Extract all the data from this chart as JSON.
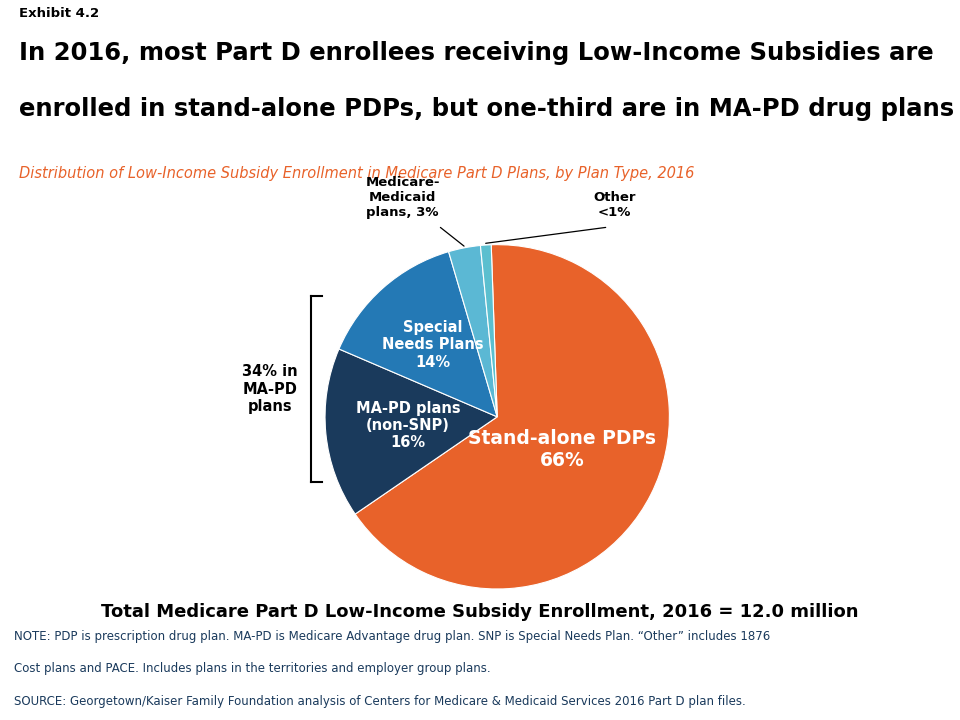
{
  "exhibit_label": "Exhibit 4.2",
  "title_line1": "In 2016, most Part D enrollees receiving Low-Income Subsidies are",
  "title_line2": "enrolled in stand-alone PDPs, but one-third are in MA-PD drug plans",
  "subtitle": "Distribution of Low-Income Subsidy Enrollment in Medicare Part D Plans, by Plan Type, 2016",
  "slices": [
    66,
    16,
    14,
    3,
    1
  ],
  "slice_labels_inside": [
    "Stand-alone PDPs\n66%",
    "MA-PD plans\n(non-SNP)\n16%",
    "Special\nNeeds Plans\n14%",
    "",
    ""
  ],
  "slice_colors": [
    "#E8622A",
    "#1A3A5C",
    "#2479B5",
    "#5BB8D4",
    "#5BBFCF"
  ],
  "bracket_label": "34% in\nMA-PD\nplans",
  "total_label": "Total Medicare Part D Low-Income Subsidy Enrollment, 2016 = 12.0 million",
  "note_line1": "NOTE: PDP is prescription drug plan. MA-PD is Medicare Advantage drug plan. SNP is Special Needs Plan. “Other” includes 1876",
  "note_line2": "Cost plans and PACE. Includes plans in the territories and employer group plans.",
  "source_line": "SOURCE: Georgetown/Kaiser Family Foundation analysis of Centers for Medicare & Medicaid Services 2016 Part D plan files.",
  "background_color": "#FFFFFF",
  "title_color": "#000000",
  "subtitle_color": "#E8622A",
  "total_label_color": "#000000",
  "note_color": "#1A3A5C"
}
